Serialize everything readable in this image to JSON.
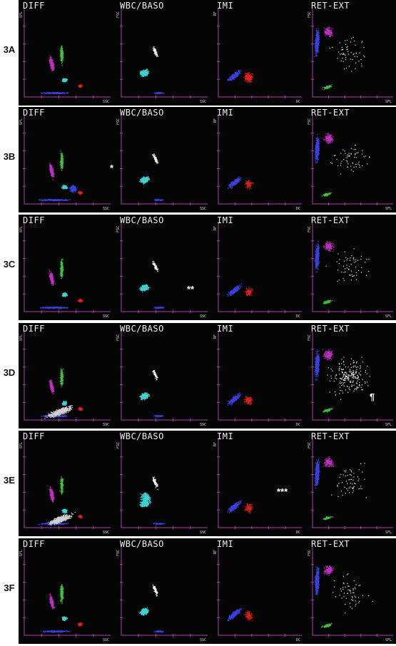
{
  "rows": [
    {
      "label": "3A",
      "titles": [
        "DIFF",
        "WBC/BASO",
        "IMI",
        "RET-EXT"
      ],
      "ylabels": [
        "SFL",
        "FSC",
        "RF",
        "FSC"
      ],
      "xlabels": [
        "SSC",
        "SSC",
        "DC",
        "SFL"
      ],
      "annotation": ""
    },
    {
      "label": "3B",
      "titles": [
        "DIFF",
        "WBC/BASO",
        "IMI",
        "RET-EXT"
      ],
      "ylabels": [
        "SFL",
        "FSC",
        "RF",
        "FSC"
      ],
      "xlabels": [
        "SSC",
        "SSC",
        "DC",
        "SFL"
      ],
      "annotation": "*"
    },
    {
      "label": "3C",
      "titles": [
        "DIFF",
        "WBC/BASO",
        "IMI",
        "RET-EXT"
      ],
      "ylabels": [
        "SFL",
        "FSC",
        "RF",
        "FSC"
      ],
      "xlabels": [
        "SSC",
        "SSC",
        "DC",
        "SFL"
      ],
      "annotation": "**"
    },
    {
      "label": "3D",
      "titles": [
        "DIFF",
        "WBC/BASO",
        "IMI",
        "RET-EXT"
      ],
      "ylabels": [
        "SFL",
        "FSC",
        "RF",
        "FSC"
      ],
      "xlabels": [
        "SSC",
        "SSC",
        "DC",
        "SFL"
      ],
      "annotation": "¶"
    },
    {
      "label": "3E",
      "titles": [
        "DIFF",
        "WBC/BASO",
        "IMI",
        "RET-EXT"
      ],
      "ylabels": [
        "SFL",
        "FSC",
        "RF",
        "FSC"
      ],
      "xlabels": [
        "SSC",
        "SSC",
        "DC",
        "SFL"
      ],
      "annotation": "***"
    },
    {
      "label": "3F",
      "titles": [
        "DIFF",
        "WBC/BASO",
        "IMI",
        "RET-EXT"
      ],
      "ylabels": [
        "SFL",
        "FSC",
        "RF",
        "FSC"
      ],
      "xlabels": [
        "SSC",
        "SSC",
        "DC",
        "SFL"
      ],
      "annotation": ""
    }
  ],
  "colors": {
    "axis": "#b040b0",
    "magenta": "#c030c0",
    "green": "#40c040",
    "cyan": "#40d0d0",
    "blue": "#3a40e0",
    "red": "#e02020",
    "white": "#f0f0f0",
    "gray": "#d0d0d0",
    "panel_bg": "#050505"
  }
}
